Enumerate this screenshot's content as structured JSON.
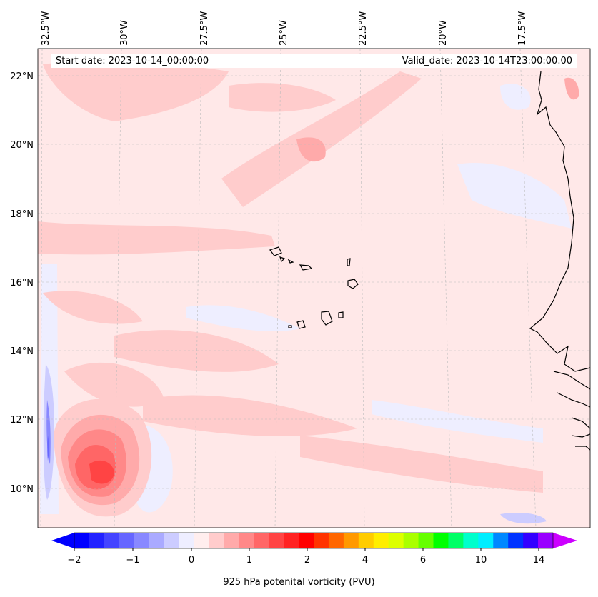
{
  "header": {
    "start_date": "Start date: 2023-10-14_00:00:00",
    "valid_date": "Valid_date: 2023-10-14T23:00:00.00"
  },
  "lon_labels": [
    "32.5°W",
    "30°W",
    "27.5°W",
    "25°W",
    "22.5°W",
    "20°W",
    "17.5°W"
  ],
  "lat_labels": [
    "22°N",
    "20°N",
    "18°N",
    "16°N",
    "14°N",
    "12°N",
    "10°N"
  ],
  "colorbar": {
    "label": "925 hPa potenital vorticity (PVU)",
    "ticks": [
      "−2",
      "−1",
      "0",
      "1",
      "2",
      "4",
      "6",
      "10",
      "14"
    ],
    "colors": [
      "#0000ff",
      "#2222ff",
      "#4444ff",
      "#6666ff",
      "#8888ff",
      "#aaaaff",
      "#ccccff",
      "#eeeeff",
      "#ffeeee",
      "#ffcccc",
      "#ffaaaa",
      "#ff8888",
      "#ff6666",
      "#ff4444",
      "#ff2222",
      "#ff0000",
      "#ff3300",
      "#ff6600",
      "#ff9900",
      "#ffcc00",
      "#ffee00",
      "#ddff00",
      "#aaff00",
      "#66ff00",
      "#00ff00",
      "#00ff66",
      "#00ffcc",
      "#00eeff",
      "#0088ff",
      "#0033ff",
      "#3300ff",
      "#9900ff"
    ],
    "extend_low_color": "#0000ff",
    "extend_high_color": "#cc00ff"
  }
}
